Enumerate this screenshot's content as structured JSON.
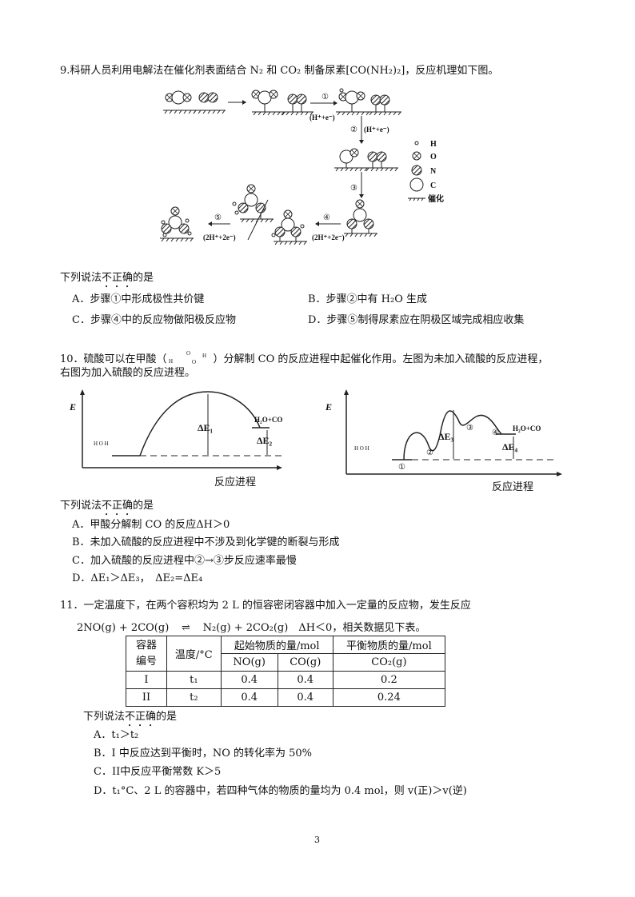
{
  "q9": {
    "stem": "9.科研人员利用电解法在催化剂表面结合 N₂ 和 CO₂ 制备尿素[CO(NH₂)₂]，反应机理如下图。",
    "diagram": {
      "steps": [
        "①",
        "②",
        "③",
        "④",
        "⑤"
      ],
      "step_conditions": [
        "(H⁺+e⁻)",
        "(H⁺+e⁻)",
        "(2H⁺+2e⁻)",
        "(2H⁺+2e⁻)"
      ],
      "legend": [
        {
          "symbol": "small-circle",
          "label": "H"
        },
        {
          "symbol": "crossed-circle",
          "label": "O"
        },
        {
          "symbol": "hatched-circle",
          "label": "N"
        },
        {
          "symbol": "large-circle",
          "label": "C"
        },
        {
          "symbol": "hatched-line",
          "label": "催化"
        }
      ]
    },
    "prompt_pre": "下列说法",
    "prompt_em": "不正确",
    "prompt_post": "的是",
    "options": [
      "A．步骤①中形成极性共价键",
      "B．步骤②中有 H₂O 生成",
      "C．步骤④中的反应物做阳极反应物",
      "D．步骤⑤制得尿素应在阴极区域完成相应收集"
    ]
  },
  "q10": {
    "stem_a": "10．硫酸可以在甲酸（",
    "stem_b": "）分解制 CO 的反应进程中起催化作用。左图为未加入硫酸的反应进程，",
    "stem_c": "右图为加入硫酸的反应进程。",
    "left": {
      "ylabel": "E",
      "xlabel": "反应进程",
      "product": "H₂O+CO",
      "de1": "ΔE₁",
      "de2": "ΔE₂"
    },
    "right": {
      "ylabel": "E",
      "xlabel": "反应进程",
      "product": "H₂O+CO",
      "de3": "ΔE₃",
      "de4": "ΔE₄",
      "points": [
        "①",
        "②",
        "③",
        "④"
      ]
    },
    "prompt_pre": "下列说法",
    "prompt_em": "不正确",
    "prompt_post": "的是",
    "options": [
      "A．甲酸分解制 CO 的反应ΔH＞0",
      "B．未加入硫酸的反应进程中不涉及到化学键的断裂与形成",
      "C．加入硫酸的反应进程中②→③步反应速率最慢",
      "D．ΔE₁＞ΔE₃，　ΔE₂=ΔE₄"
    ]
  },
  "q11": {
    "stem": "11．一定温度下，在两个容积均为 2 L 的恒容密闭容器中加入一定量的反应物，发生反应",
    "equation_left": "2NO(g) + 2CO(g)",
    "equation_right": "N₂(g) + 2CO₂(g)　ΔH＜0，相关数据见下表。",
    "table": {
      "h_container": "容器\n编号",
      "h_container_1": "容器",
      "h_container_2": "编号",
      "h_temp": "温度/°C",
      "h_start": "起始物质的量/mol",
      "h_eq": "平衡物质的量/mol",
      "sub": [
        "NO(g)",
        "CO(g)",
        "CO₂(g)"
      ],
      "rows": [
        [
          "I",
          "t₁",
          "0.4",
          "0.4",
          "0.2"
        ],
        [
          "II",
          "t₂",
          "0.4",
          "0.4",
          "0.24"
        ]
      ]
    },
    "prompt_pre": "下列说法",
    "prompt_em": "不正确",
    "prompt_post": "的是",
    "options": [
      "A．t₁＞t₂",
      "B．I 中反应达到平衡时，NO 的转化率为 50%",
      "C．II中反应平衡常数 K＞5",
      "D．t₁°C、2 L 的容器中，若四种气体的物质的量均为 0.4 mol，则 v(正)＞v(逆)"
    ]
  },
  "page_number": "3"
}
